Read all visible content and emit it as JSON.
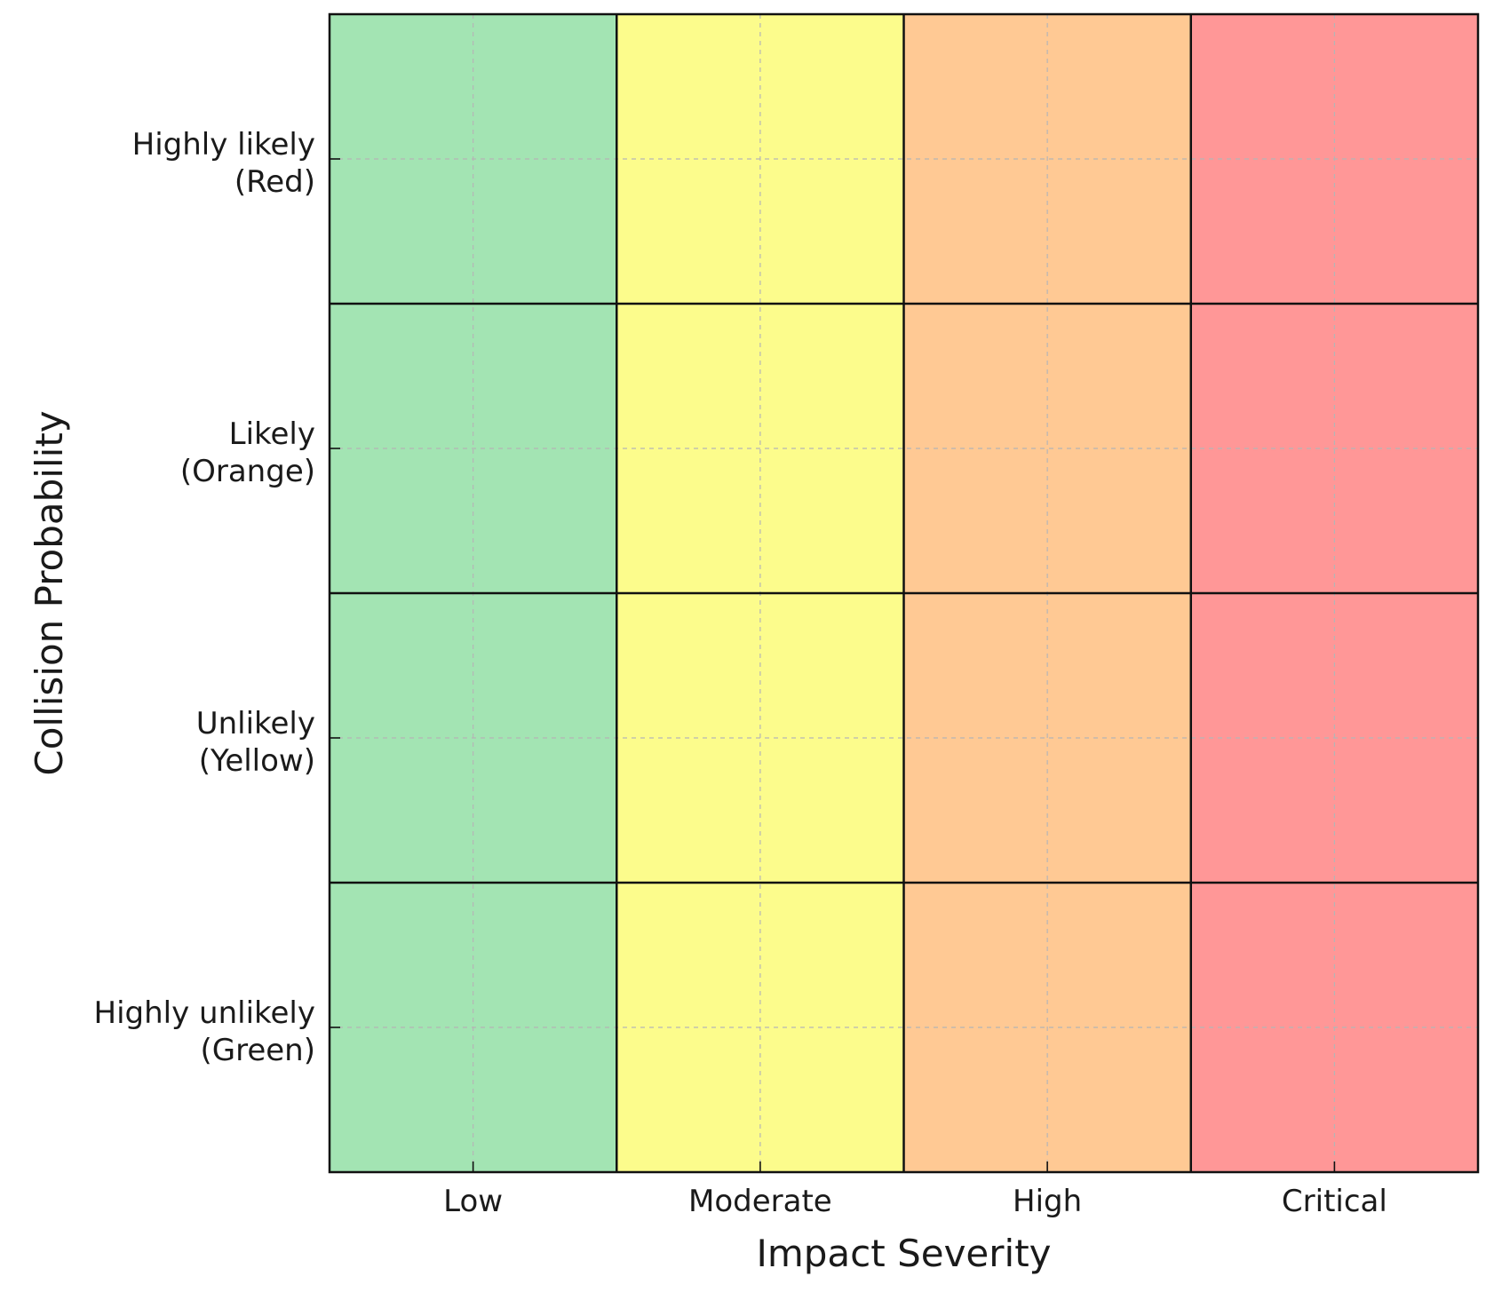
{
  "chart_data": {
    "type": "heatmap",
    "title": "",
    "xlabel": "Impact Severity",
    "ylabel": "Collision Probability",
    "x_categories": [
      "Low",
      "Moderate",
      "High",
      "Critical"
    ],
    "y_categories": [
      [
        "Highly unlikely",
        "(Green)"
      ],
      [
        "Unlikely",
        "(Yellow)"
      ],
      [
        "Likely",
        "(Orange)"
      ],
      [
        "Highly likely",
        "(Red)"
      ]
    ],
    "column_colors": [
      "#a3e4b3",
      "#fcfc8c",
      "#ffc994",
      "#ff9797"
    ],
    "grid": true
  }
}
